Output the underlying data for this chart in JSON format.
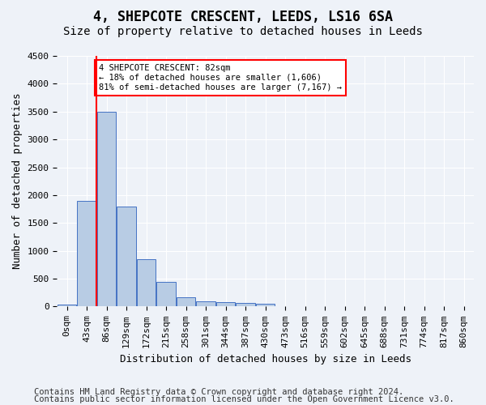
{
  "title": "4, SHEPCOTE CRESCENT, LEEDS, LS16 6SA",
  "subtitle": "Size of property relative to detached houses in Leeds",
  "xlabel": "Distribution of detached houses by size in Leeds",
  "ylabel": "Number of detached properties",
  "bin_labels": [
    "0sqm",
    "43sqm",
    "86sqm",
    "129sqm",
    "172sqm",
    "215sqm",
    "258sqm",
    "301sqm",
    "344sqm",
    "387sqm",
    "430sqm",
    "473sqm",
    "516sqm",
    "559sqm",
    "602sqm",
    "645sqm",
    "688sqm",
    "731sqm",
    "774sqm",
    "817sqm",
    "860sqm"
  ],
  "bar_heights": [
    30,
    1900,
    3500,
    1800,
    850,
    450,
    160,
    95,
    75,
    60,
    50,
    0,
    0,
    0,
    0,
    0,
    0,
    0,
    0,
    0,
    0
  ],
  "bar_color": "#b8cce4",
  "bar_edge_color": "#4472c4",
  "property_line_x": 1.5,
  "annotation_text": "4 SHEPCOTE CRESCENT: 82sqm\n← 18% of detached houses are smaller (1,606)\n81% of semi-detached houses are larger (7,167) →",
  "annotation_box_color": "white",
  "annotation_box_edge_color": "red",
  "vline_color": "red",
  "ylim": [
    0,
    4500
  ],
  "yticks": [
    0,
    500,
    1000,
    1500,
    2000,
    2500,
    3000,
    3500,
    4000,
    4500
  ],
  "footer_line1": "Contains HM Land Registry data © Crown copyright and database right 2024.",
  "footer_line2": "Contains public sector information licensed under the Open Government Licence v3.0.",
  "bg_color": "#eef2f8",
  "grid_color": "white",
  "title_fontsize": 12,
  "subtitle_fontsize": 10,
  "axis_label_fontsize": 9,
  "tick_fontsize": 8,
  "footer_fontsize": 7.5
}
